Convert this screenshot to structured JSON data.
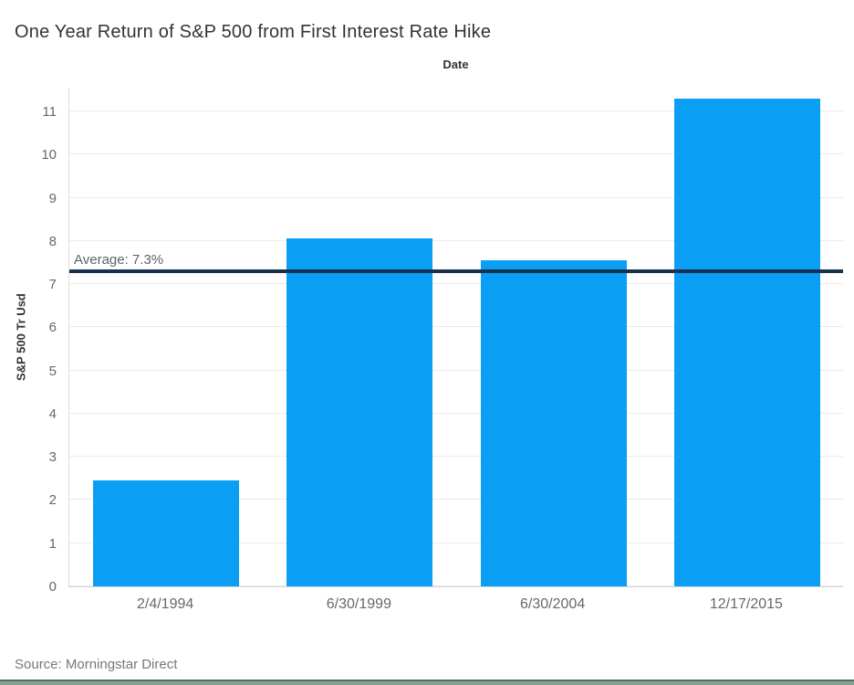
{
  "title": "One Year Return of S&P 500 from First Interest Rate Hike",
  "source": "Source: Morningstar Direct",
  "chart_data": {
    "type": "bar",
    "title": "One Year Return of S&P 500 from First Interest Rate Hike",
    "xlabel": "Date",
    "ylabel": "S&P 500 Tr Usd",
    "categories": [
      "2/4/1994",
      "6/30/1999",
      "6/30/2004",
      "12/17/2015"
    ],
    "values": [
      2.45,
      8.05,
      7.55,
      11.3
    ],
    "yticks": [
      0,
      1,
      2,
      3,
      4,
      5,
      6,
      7,
      8,
      9,
      10,
      11
    ],
    "ylim": [
      0,
      11.57
    ],
    "grid": true,
    "legend": false,
    "bar_color": "#0a9ff5",
    "reference_line": {
      "value": 7.3,
      "label": "Average: 7.3%",
      "color": "#17304c"
    }
  },
  "colors": {
    "bar": "#0a9ff5",
    "reference_line": "#17304c",
    "gridline": "#ebebeb",
    "title_text": "#333333",
    "tick_text": "#686868",
    "source_text": "#787878",
    "bottom_border": "#4d7157"
  }
}
